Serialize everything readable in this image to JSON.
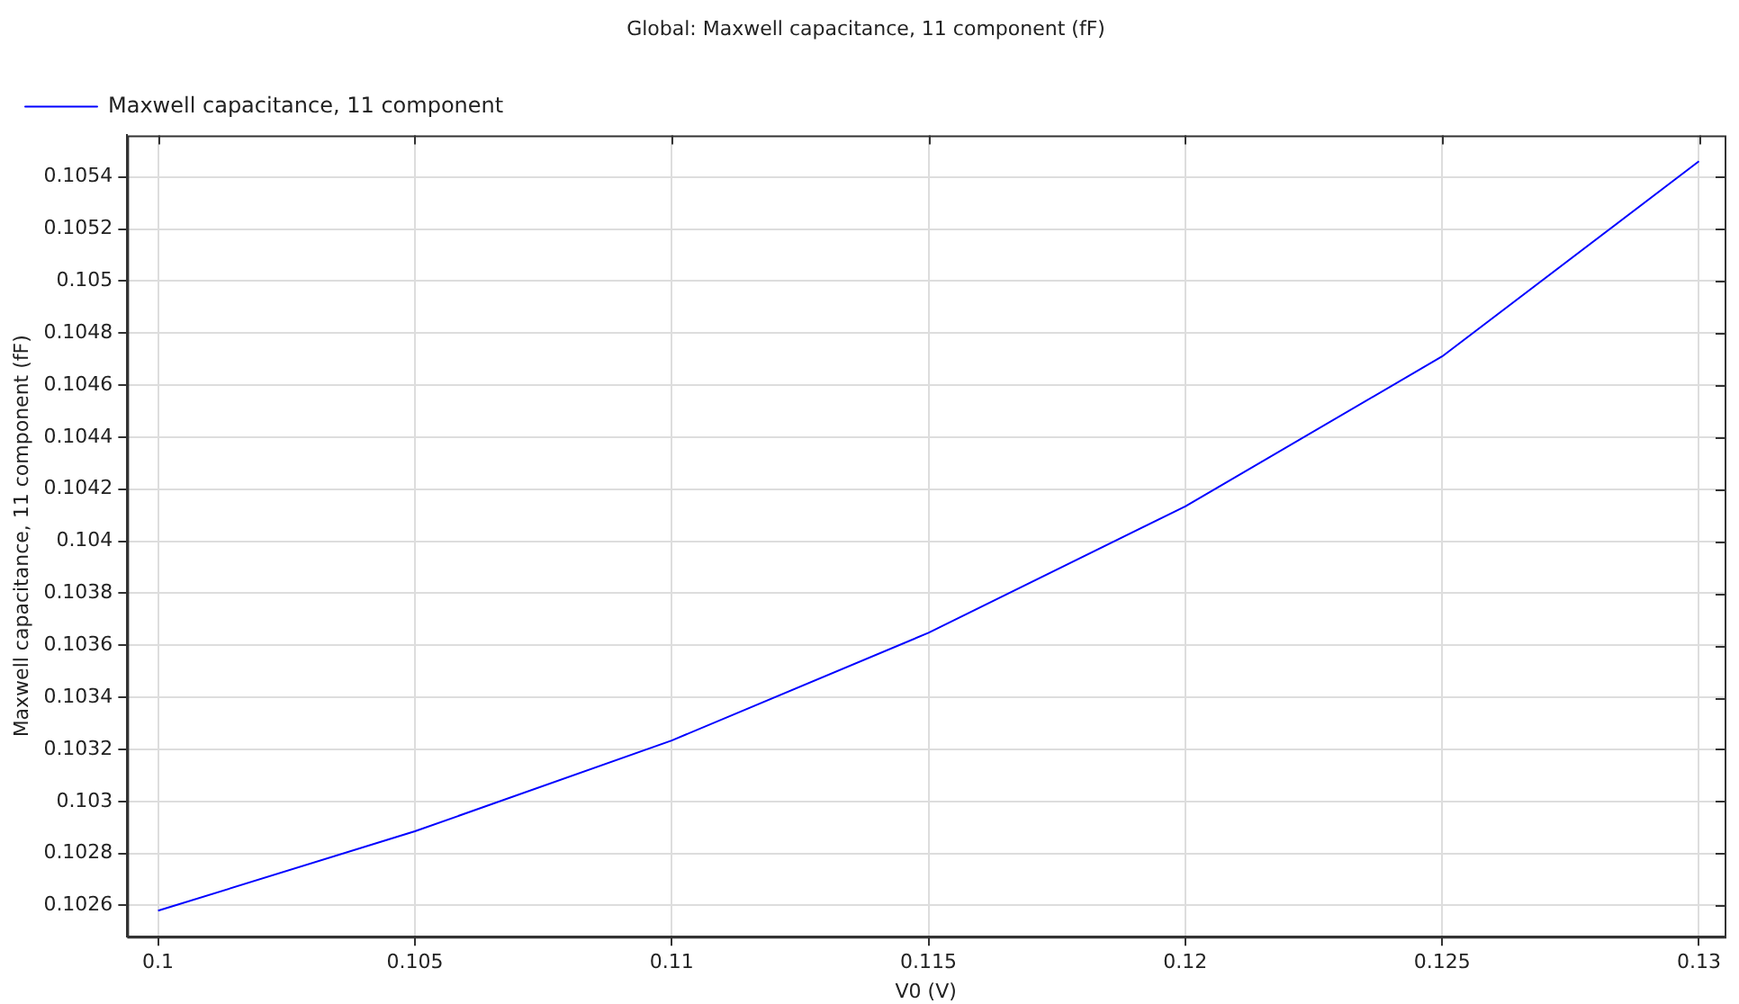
{
  "chart_data": {
    "type": "line",
    "title": "Global: Maxwell capacitance, 11 component (fF)",
    "xlabel": "V0 (V)",
    "ylabel": "Maxwell capacitance, 11 component (fF)",
    "x": [
      0.1,
      0.105,
      0.11,
      0.115,
      0.12,
      0.125,
      0.13
    ],
    "series": [
      {
        "name": "Maxwell capacitance, 11 component",
        "color": "#0000ff",
        "values": [
          0.10258,
          0.102885,
          0.103234,
          0.103648,
          0.104134,
          0.10471,
          0.10546
        ]
      }
    ],
    "xlim": [
      0.0994,
      0.1305
    ],
    "xticks": [
      0.1,
      0.105,
      0.11,
      0.115,
      0.12,
      0.125,
      0.13
    ],
    "ylim": [
      0.10248,
      0.10556
    ],
    "yticks": [
      0.1026,
      0.1028,
      0.103,
      0.1032,
      0.1034,
      0.1036,
      0.1038,
      0.104,
      0.1042,
      0.1044,
      0.1046,
      0.1048,
      0.105,
      0.1052,
      0.1054
    ],
    "grid": true,
    "legend": "top left",
    "marker": "none",
    "line_style": "solid"
  }
}
